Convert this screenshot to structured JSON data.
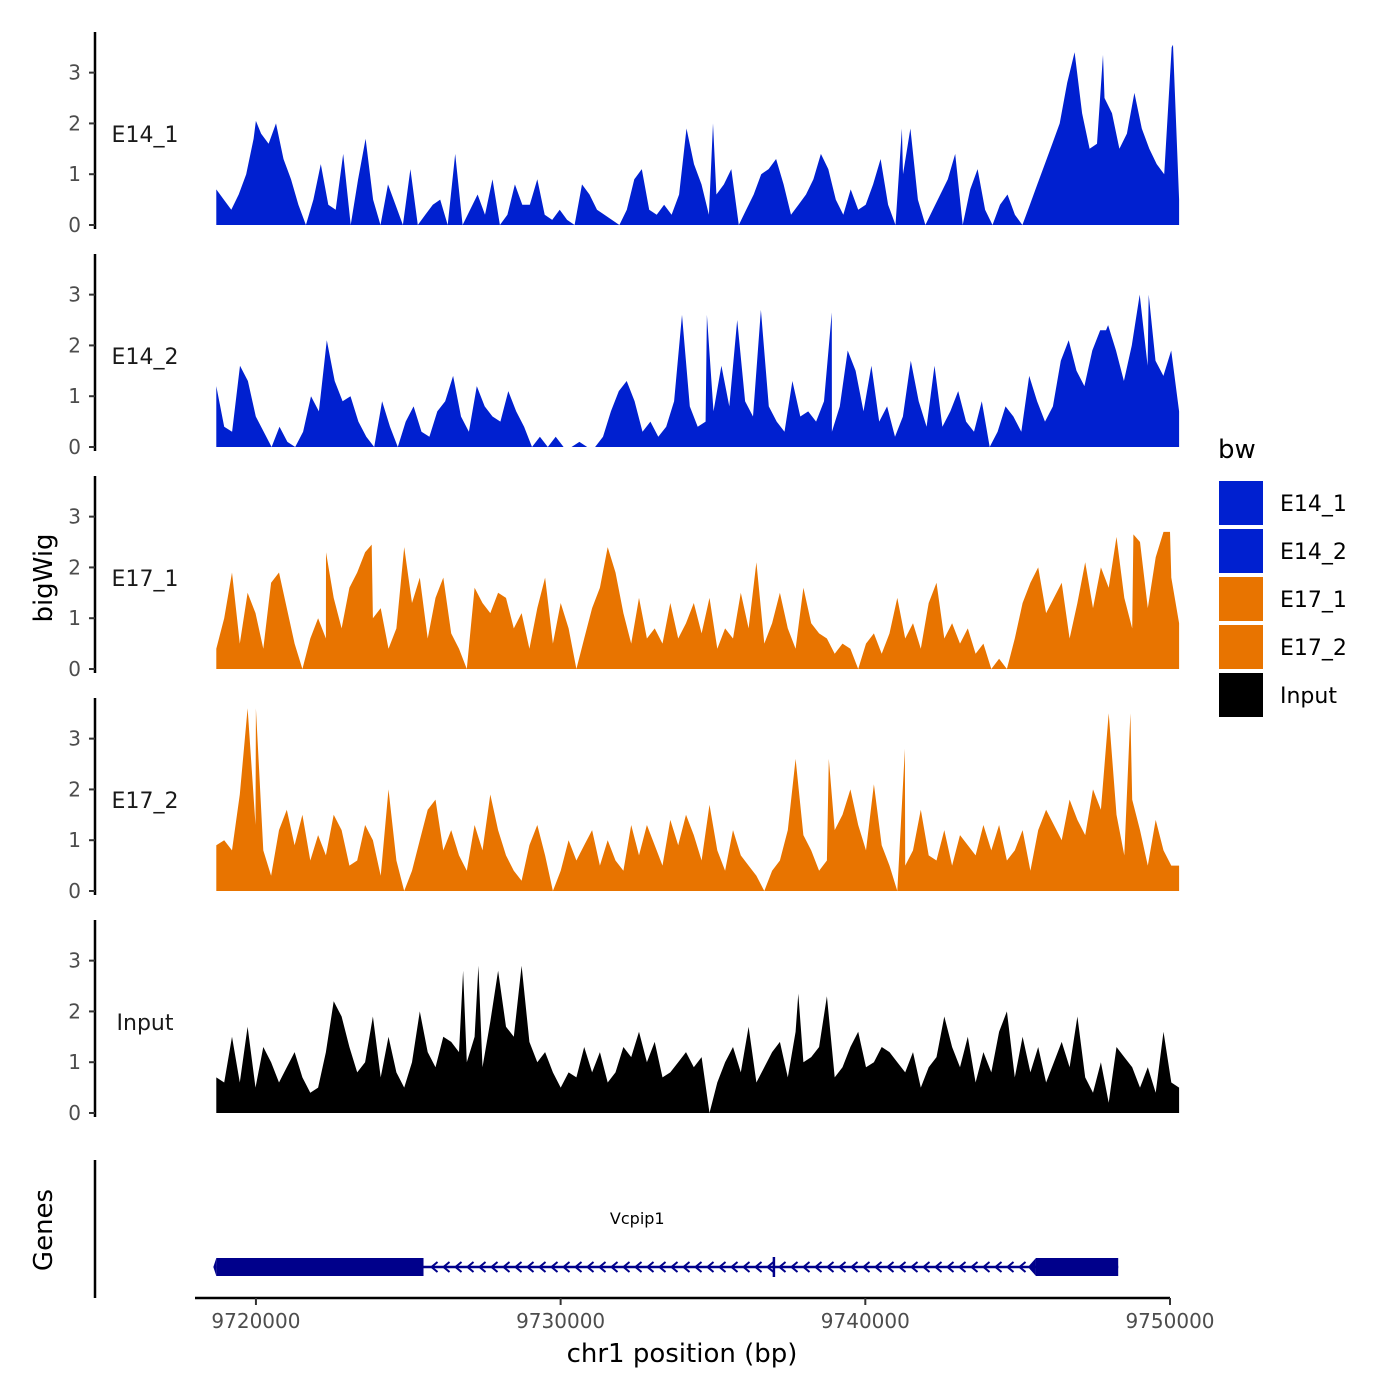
{
  "chart_data": {
    "type": "area",
    "title": "",
    "ylabel": "bigWig",
    "xlabel": "chr1 position (bp)",
    "chrom": "chr1",
    "xlim": [
      9718000,
      9750000
    ],
    "x_ticks": [
      9720000,
      9730000,
      9740000,
      9750000
    ],
    "x_tick_labels": [
      "9720000",
      "9730000",
      "9740000",
      "9750000"
    ],
    "ylim": [
      0,
      3.8
    ],
    "y_ticks": [
      0,
      1,
      2,
      3
    ],
    "y_tick_labels": [
      "0",
      "1",
      "2",
      "3"
    ],
    "x_range": [
      9718700,
      9750300
    ],
    "series": [
      {
        "name": "E14_1",
        "color": "#0020D0",
        "values": [
          0.7,
          0.5,
          0.3,
          0.6,
          1.0,
          1.7,
          1.8,
          1.6,
          2.0,
          1.3,
          0.9,
          0.4,
          0.0,
          0.5,
          1.2,
          0.4,
          0.3,
          1.4,
          0.0,
          0.9,
          1.7,
          0.5,
          0.0,
          0.8,
          0.4,
          0.0,
          1.1,
          0.0,
          0.2,
          0.4,
          0.5,
          0.0,
          1.4,
          0.0,
          0.3,
          0.6,
          0.2,
          0.9,
          0.0,
          0.2,
          0.8,
          0.4,
          0.4,
          0.9,
          0.2,
          0.1,
          0.3,
          0.1,
          0.0,
          0.8,
          0.6,
          0.3,
          0.2,
          0.1,
          0.0,
          0.3,
          0.9,
          1.1,
          0.3,
          0.2,
          0.4,
          0.2,
          0.6,
          1.9,
          1.2,
          0.8,
          0.2,
          0.6,
          0.8,
          1.1,
          0.0,
          0.3,
          0.6,
          1.0,
          1.1,
          1.3,
          0.8,
          0.2,
          0.4,
          0.6,
          0.9,
          1.4,
          1.1,
          0.5,
          0.2,
          0.7,
          0.3,
          0.4,
          0.8,
          1.3,
          0.4,
          0.0,
          1.0,
          1.9,
          0.5,
          0.0,
          0.3,
          0.6,
          0.9,
          1.4,
          0.0,
          0.7,
          1.1,
          0.3,
          0.0,
          0.4,
          0.6,
          0.2,
          0.0,
          0.4,
          0.8,
          1.2,
          1.6,
          2.0,
          2.8,
          3.4,
          2.2,
          1.5,
          1.6,
          2.5,
          2.2,
          1.5,
          1.8,
          2.6,
          1.9,
          1.5,
          1.2,
          1.0,
          3.5,
          0.5
        ],
        "peaks": [
          [
            9720000,
            2.05
          ],
          [
            9735000,
            2.0
          ],
          [
            9741200,
            1.9
          ],
          [
            9747800,
            3.35
          ],
          [
            9750100,
            3.55
          ]
        ]
      },
      {
        "name": "E14_2",
        "color": "#0020D0",
        "values": [
          1.2,
          0.4,
          0.3,
          1.6,
          1.3,
          0.6,
          0.3,
          0.0,
          0.4,
          0.1,
          0.0,
          0.3,
          1.0,
          0.7,
          2.1,
          1.3,
          0.9,
          1.0,
          0.5,
          0.2,
          0.0,
          0.9,
          0.4,
          0.0,
          0.5,
          0.8,
          0.3,
          0.2,
          0.7,
          0.9,
          1.4,
          0.6,
          0.3,
          1.2,
          0.8,
          0.6,
          0.5,
          1.1,
          0.7,
          0.4,
          0.0,
          0.2,
          0.0,
          0.2,
          0.0,
          0.0,
          0.1,
          0.0,
          0.0,
          0.2,
          0.7,
          1.1,
          1.3,
          0.9,
          0.3,
          0.5,
          0.2,
          0.4,
          0.9,
          2.6,
          0.8,
          0.4,
          0.5,
          0.7,
          1.6,
          0.8,
          2.5,
          0.9,
          0.6,
          2.7,
          0.8,
          0.5,
          0.3,
          1.3,
          0.6,
          0.7,
          0.5,
          0.9,
          0.3,
          0.8,
          1.9,
          1.5,
          0.7,
          1.6,
          0.5,
          0.8,
          0.2,
          0.6,
          1.7,
          0.9,
          0.4,
          1.6,
          0.4,
          0.7,
          1.1,
          0.5,
          0.3,
          0.9,
          0.0,
          0.3,
          0.8,
          0.6,
          0.3,
          1.4,
          0.9,
          0.5,
          0.8,
          1.7,
          2.1,
          1.5,
          1.2,
          1.9,
          2.3,
          2.4,
          1.9,
          1.3,
          2.0,
          3.0,
          1.6,
          1.7,
          1.4,
          1.9,
          0.7
        ],
        "peaks": [
          [
            9734800,
            2.6
          ],
          [
            9738900,
            2.65
          ],
          [
            9747900,
            2.3
          ],
          [
            9749300,
            3.0
          ]
        ]
      },
      {
        "name": "E17_1",
        "color": "#E87400",
        "values": [
          0.4,
          1.0,
          1.9,
          0.5,
          1.5,
          1.1,
          0.4,
          1.7,
          1.9,
          1.2,
          0.5,
          0.0,
          0.6,
          1.0,
          0.6,
          1.4,
          0.8,
          1.6,
          1.9,
          2.3,
          1.0,
          1.2,
          0.4,
          0.8,
          2.4,
          1.3,
          1.8,
          0.6,
          1.4,
          1.8,
          0.7,
          0.4,
          0.0,
          1.6,
          1.3,
          1.1,
          1.5,
          1.4,
          0.8,
          1.1,
          0.4,
          1.2,
          1.8,
          0.5,
          1.3,
          0.8,
          0.0,
          0.6,
          1.2,
          1.6,
          2.4,
          1.9,
          1.1,
          0.5,
          1.4,
          0.6,
          0.8,
          0.5,
          1.3,
          0.6,
          0.9,
          1.3,
          0.7,
          1.4,
          0.4,
          0.8,
          0.6,
          1.5,
          0.8,
          2.1,
          0.5,
          0.9,
          1.5,
          0.8,
          0.4,
          1.6,
          0.9,
          0.7,
          0.6,
          0.3,
          0.5,
          0.4,
          0.0,
          0.5,
          0.7,
          0.3,
          0.7,
          1.4,
          0.6,
          0.9,
          0.4,
          1.3,
          1.7,
          0.6,
          0.9,
          0.5,
          0.8,
          0.3,
          0.5,
          0.0,
          0.2,
          0.0,
          0.6,
          1.3,
          1.7,
          2.0,
          1.1,
          1.4,
          1.7,
          0.6,
          1.3,
          2.1,
          1.2,
          2.0,
          1.6,
          2.6,
          1.4,
          0.8,
          2.5,
          1.2,
          2.2,
          2.7,
          1.8,
          0.9
        ],
        "peaks": [
          [
            9722300,
            2.3
          ],
          [
            9723800,
            2.45
          ],
          [
            9748800,
            2.65
          ],
          [
            9750000,
            2.7
          ]
        ]
      },
      {
        "name": "E17_2",
        "color": "#E87400",
        "values": [
          0.9,
          1.0,
          0.8,
          1.9,
          3.6,
          1.3,
          0.8,
          0.3,
          1.2,
          1.6,
          0.9,
          1.5,
          0.6,
          1.1,
          0.7,
          1.5,
          1.2,
          0.5,
          0.6,
          1.3,
          1.0,
          0.3,
          2.0,
          0.6,
          0.0,
          0.4,
          1.0,
          1.6,
          1.8,
          0.8,
          1.2,
          0.7,
          0.4,
          1.3,
          0.8,
          1.9,
          1.2,
          0.7,
          0.4,
          0.2,
          0.9,
          1.3,
          0.7,
          0.0,
          0.4,
          1.0,
          0.6,
          0.9,
          1.2,
          0.5,
          1.0,
          0.6,
          0.4,
          1.3,
          0.7,
          1.3,
          0.9,
          0.5,
          1.4,
          0.9,
          1.5,
          1.1,
          0.6,
          1.7,
          0.8,
          0.4,
          1.2,
          0.7,
          0.5,
          0.3,
          0.0,
          0.4,
          0.6,
          1.2,
          2.6,
          1.1,
          0.8,
          0.4,
          0.6,
          1.2,
          1.5,
          2.0,
          1.3,
          0.8,
          2.1,
          0.9,
          0.5,
          0.0,
          0.5,
          0.8,
          1.6,
          0.7,
          0.6,
          1.2,
          0.5,
          1.1,
          0.9,
          0.7,
          1.3,
          0.8,
          1.3,
          0.6,
          0.8,
          1.2,
          0.4,
          1.2,
          1.6,
          1.3,
          1.0,
          1.8,
          1.4,
          1.1,
          2.0,
          1.6,
          3.5,
          1.5,
          0.7,
          1.8,
          1.2,
          0.5,
          1.4,
          0.8,
          0.5,
          0.5
        ],
        "peaks": [
          [
            9720000,
            3.6
          ],
          [
            9738800,
            2.6
          ],
          [
            9741300,
            2.8
          ],
          [
            9748700,
            3.5
          ]
        ]
      },
      {
        "name": "Input",
        "color": "#000000",
        "values": [
          0.7,
          0.6,
          1.5,
          0.6,
          1.7,
          0.5,
          1.3,
          1.0,
          0.6,
          0.9,
          1.2,
          0.7,
          0.4,
          0.5,
          1.2,
          2.2,
          1.9,
          1.3,
          0.8,
          1.0,
          1.9,
          0.7,
          1.5,
          0.8,
          0.5,
          1.0,
          2.0,
          1.2,
          0.9,
          1.5,
          1.4,
          1.2,
          1.0,
          1.5,
          0.9,
          1.8,
          2.8,
          1.7,
          1.5,
          2.9,
          1.4,
          1.0,
          1.2,
          0.8,
          0.5,
          0.8,
          0.7,
          1.3,
          0.8,
          1.2,
          0.6,
          0.8,
          1.3,
          1.1,
          1.6,
          1.0,
          1.4,
          0.7,
          0.8,
          1.0,
          1.2,
          0.9,
          1.1,
          0.0,
          0.6,
          1.0,
          1.3,
          0.8,
          1.7,
          0.6,
          0.9,
          1.2,
          1.4,
          0.7,
          1.6,
          1.0,
          1.1,
          1.3,
          2.3,
          0.7,
          0.9,
          1.3,
          1.6,
          0.9,
          1.0,
          1.3,
          1.2,
          1.0,
          0.8,
          1.2,
          0.5,
          0.9,
          1.1,
          1.9,
          1.3,
          0.9,
          1.5,
          0.6,
          1.2,
          0.8,
          1.6,
          2.0,
          0.7,
          1.5,
          0.8,
          1.3,
          0.6,
          1.0,
          1.4,
          0.9,
          1.9,
          0.7,
          0.4,
          1.0,
          0.2,
          1.3,
          1.1,
          0.9,
          0.5,
          0.9,
          0.4,
          1.6,
          0.6,
          0.5
        ],
        "peaks": [
          [
            9726800,
            2.8
          ],
          [
            9727300,
            2.9
          ],
          [
            9737800,
            2.35
          ]
        ]
      }
    ],
    "legend": {
      "title": "bw",
      "position": "right",
      "entries": [
        {
          "label": "E14_1",
          "color": "#0020D0"
        },
        {
          "label": "E14_2",
          "color": "#0020D0"
        },
        {
          "label": "E17_1",
          "color": "#E87400"
        },
        {
          "label": "E17_2",
          "color": "#E87400"
        },
        {
          "label": "Input",
          "color": "#000000"
        }
      ]
    },
    "genes_track": {
      "ylabel": "Genes",
      "genes": [
        {
          "name": "Vcpip1",
          "strand": "-",
          "start": 9718700,
          "end": 9748300,
          "color": "#00008B",
          "exons": [
            [
              9718700,
              9725500
            ],
            [
              9745600,
              9748300
            ]
          ],
          "marker": 9737000
        }
      ]
    }
  }
}
